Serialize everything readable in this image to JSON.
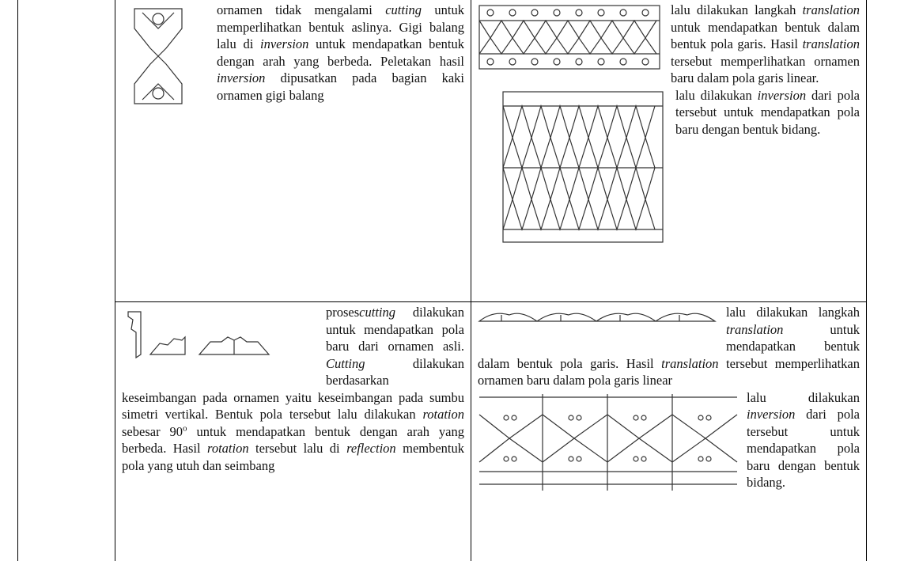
{
  "table": {
    "rows": [
      [
        {
          "paragraphs": [
            {
              "runs": [
                {
                  "text": "ornamen tidak mengalami "
                },
                {
                  "text": "cutting",
                  "style": "italic"
                },
                {
                  "text": " untuk memperlihatkan bentuk aslinya. Gigi balang lalu di "
                },
                {
                  "text": "inversion",
                  "style": "italic"
                },
                {
                  "text": " untuk mendapatkan bentuk dengan arah yang berbeda. Peletakan hasil "
                },
                {
                  "text": "inversion",
                  "style": "italic"
                },
                {
                  "text": " dipusatkan pada bagian kaki ornamen gigi balang"
                }
              ]
            }
          ]
        },
        {
          "paragraphs": [
            {
              "runs": [
                {
                  "text": "lalu dilakukan langkah "
                },
                {
                  "text": "translation",
                  "style": "italic"
                },
                {
                  "text": " untuk mendapatkan bentuk dalam bentuk pola garis. Hasil "
                },
                {
                  "text": "translation",
                  "style": "italic"
                },
                {
                  "text": " tersebut memperlihatkan ornamen baru dalam pola garis linear."
                }
              ]
            },
            {
              "runs": [
                {
                  "text": "lalu dilakukan "
                },
                {
                  "text": "inversion",
                  "style": "italic"
                },
                {
                  "text": " dari pola tersebut untuk mendapatkan pola baru dengan bentuk bidang."
                }
              ]
            }
          ]
        }
      ],
      [
        {
          "paragraphs": [
            {
              "runs": [
                {
                  "text": "proses"
                },
                {
                  "text": "cutting",
                  "style": "italic"
                },
                {
                  "text": " dilakukan untuk mendapatkan pola baru dari ornamen asli. "
                },
                {
                  "text": "Cutting",
                  "style": "italic"
                },
                {
                  "text": " dilakukan berdasarkan keseimbangan pada ornamen yaitu keseimbangan pada sumbu simetri vertikal. Bentuk pola tersebut lalu dilakukan "
                },
                {
                  "text": "rotation",
                  "style": "italic"
                },
                {
                  "text": " sebesar 90"
                },
                {
                  "text": "o",
                  "style": "superscript"
                },
                {
                  "text": " untuk mendapatkan bentuk dengan arah yang berbeda. Hasil "
                },
                {
                  "text": "rotation",
                  "style": "italic"
                },
                {
                  "text": " tersebut lalu di "
                },
                {
                  "text": "reflection",
                  "style": "italic"
                },
                {
                  "text": " membentuk pola yang utuh dan seimbang"
                }
              ]
            }
          ]
        },
        {
          "paragraphs": [
            {
              "runs": [
                {
                  "text": "lalu dilakukan langkah "
                },
                {
                  "text": "translation",
                  "style": "italic"
                },
                {
                  "text": " untuk mendapatkan bentuk dalam bentuk pola garis. Hasil "
                },
                {
                  "text": "translation",
                  "style": "italic"
                },
                {
                  "text": " tersebut memperlihatkan ornamen baru dalam pola garis linear"
                }
              ]
            },
            {
              "runs": [
                {
                  "text": "lalu dilakukan "
                },
                {
                  "text": "inversion",
                  "style": "italic"
                },
                {
                  "text": " dari pola tersebut untuk mendapatkan pola baru dengan bentuk bidang."
                }
              ]
            }
          ]
        }
      ]
    ]
  }
}
